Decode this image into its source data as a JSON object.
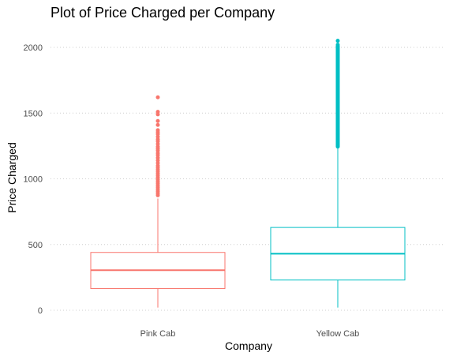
{
  "chart_data": {
    "type": "box",
    "title": "Plot of Price Charged per Company",
    "xlabel": "Company",
    "ylabel": "Price Charged",
    "ylim": [
      -20,
      2070
    ],
    "yticks": [
      0,
      500,
      1000,
      1500,
      2000
    ],
    "grid": true,
    "legend": "none",
    "categories": [
      "Pink Cab",
      "Yellow Cab"
    ],
    "boxes": [
      {
        "category": "Pink Cab",
        "color": "#F8766D",
        "min": 20,
        "q1": 165,
        "median": 305,
        "q3": 440,
        "whisker_high": 850,
        "outliers": [
          875,
          890,
          905,
          920,
          935,
          950,
          965,
          980,
          995,
          1010,
          1025,
          1040,
          1055,
          1070,
          1085,
          1100,
          1120,
          1140,
          1160,
          1180,
          1195,
          1215,
          1230,
          1245,
          1265,
          1285,
          1300,
          1320,
          1340,
          1355,
          1370,
          1410,
          1440,
          1490,
          1510,
          1620
        ]
      },
      {
        "category": "Yellow Cab",
        "color": "#00BFC4",
        "min": 20,
        "q1": 230,
        "median": 430,
        "q3": 630,
        "whisker_high": 1240,
        "outliers_dense_range": [
          1245,
          2010
        ],
        "outliers": [
          1260,
          1300,
          1340,
          1380,
          1420,
          1460,
          1500,
          1540,
          1580,
          1620,
          1660,
          1700,
          1740,
          1780,
          1820,
          1860,
          1900,
          1940,
          1980,
          2005,
          2020,
          2050
        ]
      }
    ]
  }
}
